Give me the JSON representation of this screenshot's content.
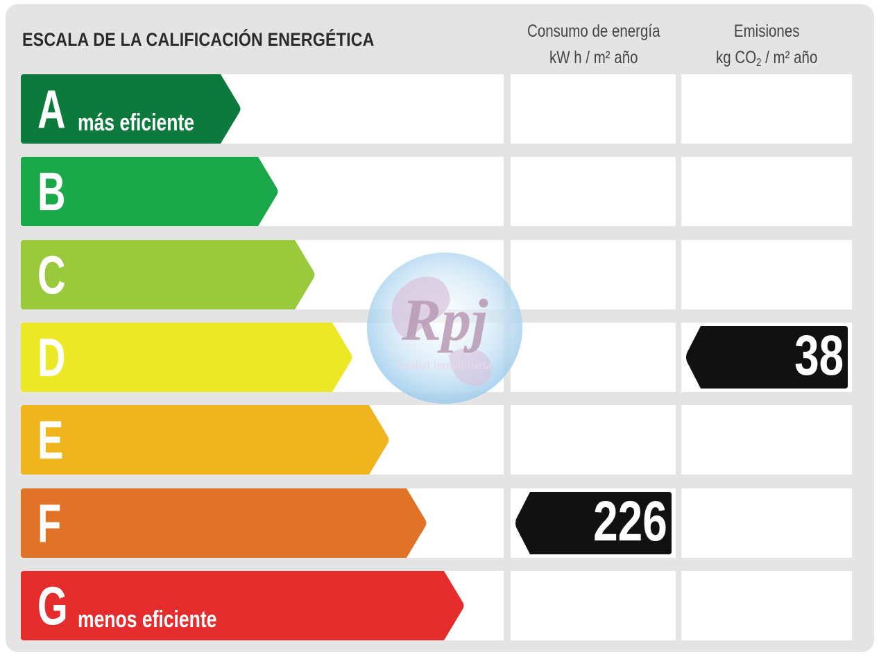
{
  "title": "ESCALA DE LA CALIFICACIÓN ENERGÉTICA",
  "columns": {
    "energy": {
      "line1": "Consumo de energía",
      "line2": "kW h / m² año"
    },
    "emissions": {
      "line1": "Emisiones",
      "line2_pre": "kg CO",
      "line2_sub": "2",
      "line2_post": " / m² año"
    }
  },
  "ratings": [
    {
      "letter": "A",
      "label": "más eficiente",
      "color": "#0d7a3d"
    },
    {
      "letter": "B",
      "label": "",
      "color": "#1aa84b"
    },
    {
      "letter": "C",
      "label": "",
      "color": "#9aca3c"
    },
    {
      "letter": "D",
      "label": "",
      "color": "#ece825"
    },
    {
      "letter": "E",
      "label": "",
      "color": "#f0b51c"
    },
    {
      "letter": "F",
      "label": "",
      "color": "#e07328"
    },
    {
      "letter": "G",
      "label": "menos eficiente",
      "color": "#e42c2c"
    }
  ],
  "values": {
    "energy": {
      "rating": "F",
      "value": "226"
    },
    "emissions": {
      "rating": "D",
      "value": "38"
    }
  },
  "watermark": {
    "logo_text": "Rpj",
    "caption": "Global Inmobiliaria"
  },
  "colors": {
    "panel": "#e4e4e4",
    "pointer": "#111111"
  }
}
